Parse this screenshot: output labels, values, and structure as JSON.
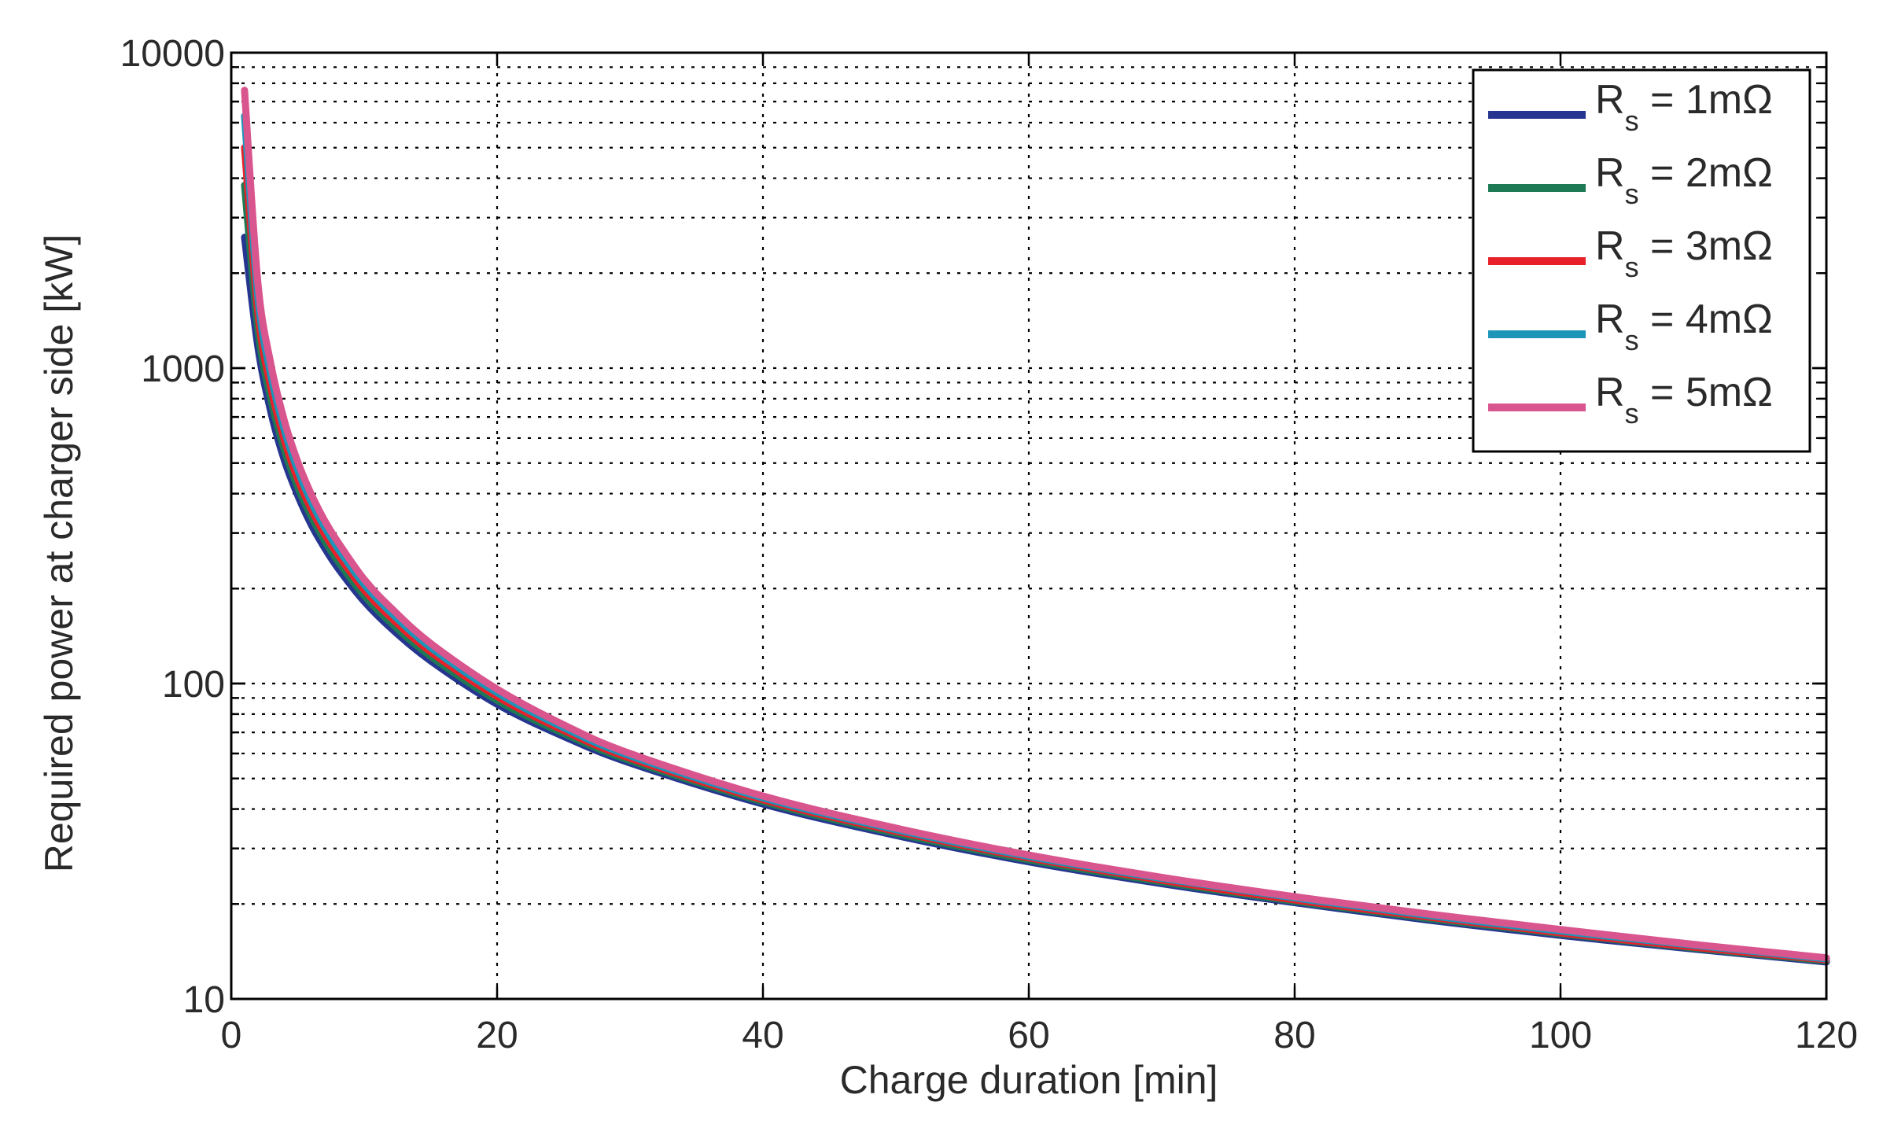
{
  "chart_data": {
    "type": "line",
    "title": "",
    "xlabel": "Charge duration [min]",
    "ylabel": "Required power at charger side [kW]",
    "x_scale": "linear",
    "y_scale": "log",
    "xlim": [
      0,
      120
    ],
    "ylim": [
      10,
      10000
    ],
    "x_ticks": [
      0,
      20,
      40,
      60,
      80,
      100,
      120
    ],
    "y_ticks": [
      10,
      100,
      1000,
      10000
    ],
    "x_tick_labels": [
      "0",
      "20",
      "40",
      "60",
      "80",
      "100",
      "120"
    ],
    "y_tick_labels": [
      "10",
      "100",
      "1000",
      "10000"
    ],
    "grid": true,
    "legend_position": "top-right",
    "x": [
      1,
      2,
      3,
      4,
      5,
      6,
      7,
      8,
      10,
      12,
      15,
      20,
      25,
      30,
      40,
      50,
      60,
      70,
      80,
      90,
      100,
      110,
      120
    ],
    "series": [
      {
        "name_main": "R",
        "name_sub": "s",
        "name_rest": " = 1mΩ",
        "color": "#26358f",
        "values": [
          2600,
          1170,
          720,
          510,
          395,
          320,
          270,
          233,
          182,
          150,
          118,
          86,
          68,
          56,
          41.5,
          33,
          27.2,
          23.2,
          20.2,
          17.8,
          15.9,
          14.4,
          13.1
        ]
      },
      {
        "name_main": "R",
        "name_sub": "s",
        "name_rest": " = 2mΩ",
        "color": "#1e7a55",
        "values": [
          3800,
          1330,
          790,
          550,
          420,
          340,
          285,
          245,
          190,
          156,
          122,
          88.5,
          69.5,
          57,
          42.2,
          33.5,
          27.6,
          23.5,
          20.4,
          18,
          16.1,
          14.5,
          13.2
        ]
      },
      {
        "name_main": "R",
        "name_sub": "s",
        "name_rest": " = 3mΩ",
        "color": "#e8202a",
        "values": [
          5000,
          1500,
          860,
          590,
          445,
          358,
          299,
          257,
          198,
          162,
          126,
          91,
          71,
          58,
          42.8,
          34,
          28,
          23.8,
          20.6,
          18.2,
          16.2,
          14.6,
          13.3
        ]
      },
      {
        "name_main": "R",
        "name_sub": "s",
        "name_rest": " = 4mΩ",
        "color": "#1b95b8",
        "values": [
          6300,
          1680,
          940,
          635,
          475,
          378,
          314,
          269,
          206,
          168,
          130,
          93.5,
          72.5,
          59,
          43.4,
          34.4,
          28.3,
          24.1,
          20.9,
          18.4,
          16.4,
          14.8,
          13.4
        ]
      },
      {
        "name_main": "R",
        "name_sub": "s",
        "name_rest": " = 5mΩ",
        "color": "#d9558e",
        "values": [
          7600,
          1870,
          1020,
          680,
          505,
          400,
          330,
          282,
          214,
          174,
          134,
          96,
          74,
          60,
          44,
          34.8,
          28.6,
          24.3,
          21.1,
          18.6,
          16.6,
          14.9,
          13.5
        ]
      }
    ]
  }
}
